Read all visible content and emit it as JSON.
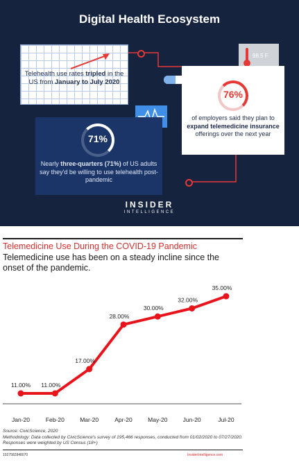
{
  "infographic": {
    "title": "Digital Health Ecosystem",
    "card1": {
      "pre": "Telehealth use rates ",
      "bold": "tripled",
      "mid": " in the US from ",
      "bold2": "January to July 2020"
    },
    "card2": {
      "percent": "76%",
      "pre": "of employers said they plan to ",
      "bold": "expand telemedicine insurance",
      "post": " offerings over the next year"
    },
    "card3": {
      "percent": "71%",
      "pre": "Nearly ",
      "bold": "three-quarters (71%)",
      "post": " of US adults say they'd be willing to use telehealth post-pandemic"
    },
    "thermometer_reading": "98.5 F",
    "brand_line1": "INSIDER",
    "brand_line2": "INTELLIGENCE",
    "colors": {
      "navy": "#15233f",
      "accent_red": "#e53935",
      "card_blue": "#1c3568"
    }
  },
  "chart_data": {
    "type": "line",
    "title": "Telemedicine Use During the COVID-19 Pandemic",
    "subtitle": "Telemedicine use has been on a steady incline since the onset of the pandemic.",
    "categories": [
      "Jan-20",
      "Feb-20",
      "Mar-20",
      "Apr-20",
      "May-20",
      "Jun-20",
      "Jul-20"
    ],
    "values": [
      11,
      11,
      17,
      28,
      30,
      32,
      35
    ],
    "value_labels": [
      "11.00%",
      "11.00%",
      "17.00%",
      "28.00%",
      "30.00%",
      "32.00%",
      "35.00%"
    ],
    "xlabel": "",
    "ylabel": "",
    "ylim": [
      0,
      40
    ],
    "grid": false,
    "legend": "none",
    "line_color": "#e8141c"
  },
  "footer": {
    "source": "Source: CivicScience, 2020",
    "methodology": "Methodology: Data collected by CivicScience's survey of 195,466 responses, conducted from 01/02/2020 to 07/27/2020. Responses were weighted by US Census (18+)",
    "chart_id": "1027582848070",
    "site": "InsiderIntelligence.com"
  }
}
